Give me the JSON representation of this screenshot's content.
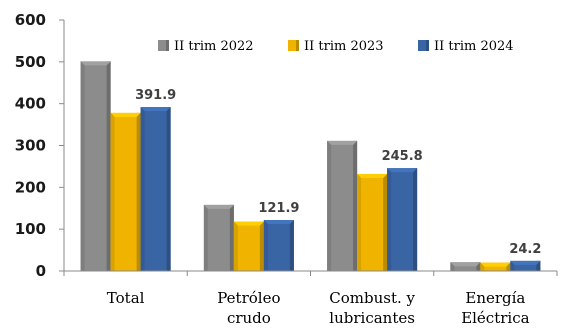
{
  "chart_data": {
    "type": "bar",
    "categories": [
      [
        "Total"
      ],
      [
        "Petróleo",
        "crudo"
      ],
      [
        "Combust. y",
        "lubricantes"
      ],
      [
        "Energía",
        "Eléctrica"
      ]
    ],
    "series": [
      {
        "name": "II trim 2022",
        "color": "#8c8c8c",
        "values": [
          501,
          158,
          311,
          21
        ]
      },
      {
        "name": "II trim 2023",
        "color": "#f0b400",
        "values": [
          378,
          118,
          232,
          20
        ]
      },
      {
        "name": "II trim 2024",
        "color": "#3a65a5",
        "values": [
          391.9,
          121.9,
          245.8,
          24.2
        ]
      }
    ],
    "data_labels": {
      "series_index": 2,
      "texts": [
        "391.9",
        "121.9",
        "245.8",
        "24.2"
      ]
    },
    "ylim": [
      0,
      600
    ],
    "yticks": [
      0,
      100,
      200,
      300,
      400,
      500,
      600
    ],
    "legend_position": "top-right",
    "title": "",
    "xlabel": "",
    "ylabel": ""
  }
}
